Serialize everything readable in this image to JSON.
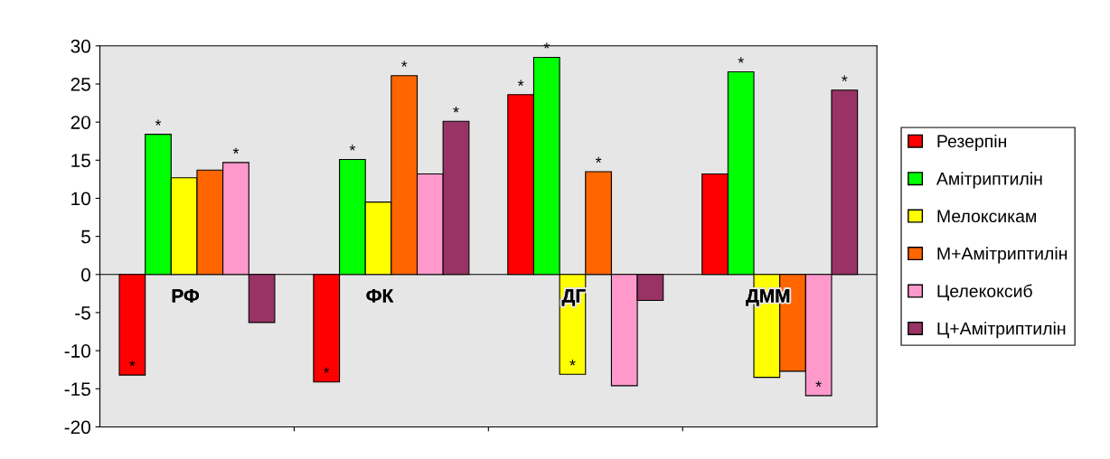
{
  "chart_data": {
    "type": "bar",
    "categories": [
      "РФ",
      "ФК",
      "ДГ",
      "ДММ"
    ],
    "series": [
      {
        "name": "Резерпін",
        "color": "#ff0000",
        "values": [
          -13.2,
          -14.1,
          23.6,
          13.2
        ],
        "value_labels": [
          "*",
          "*",
          "*",
          null
        ]
      },
      {
        "name": "Амітриптилін",
        "color": "#00ff00",
        "values": [
          18.4,
          15.1,
          28.5,
          26.6
        ],
        "value_labels": [
          "*",
          "*",
          "*",
          "*"
        ]
      },
      {
        "name": "Мелоксикам",
        "color": "#ffff00",
        "values": [
          12.7,
          9.5,
          -13.1,
          -13.5
        ],
        "value_labels": [
          null,
          null,
          "*",
          null
        ]
      },
      {
        "name": "М+Амітриптилін",
        "color": "#ff6600",
        "values": [
          13.7,
          26.1,
          13.5,
          -12.7
        ],
        "value_labels": [
          null,
          "*",
          "*",
          null
        ]
      },
      {
        "name": "Целекоксиб",
        "color": "#ff99cc",
        "values": [
          14.7,
          13.2,
          -14.6,
          -15.9
        ],
        "value_labels": [
          "*",
          null,
          null,
          "*"
        ]
      },
      {
        "name": "Ц+Амітриптилін",
        "color": "#993366",
        "values": [
          -6.3,
          20.1,
          -3.4,
          24.2
        ],
        "value_labels": [
          null,
          "*",
          null,
          "*"
        ]
      }
    ],
    "ylim": [
      -20,
      30
    ],
    "yticks": [
      -20,
      -15,
      -10,
      -5,
      0,
      5,
      10,
      15,
      20,
      25,
      30
    ],
    "grid": false,
    "legend": "right"
  }
}
